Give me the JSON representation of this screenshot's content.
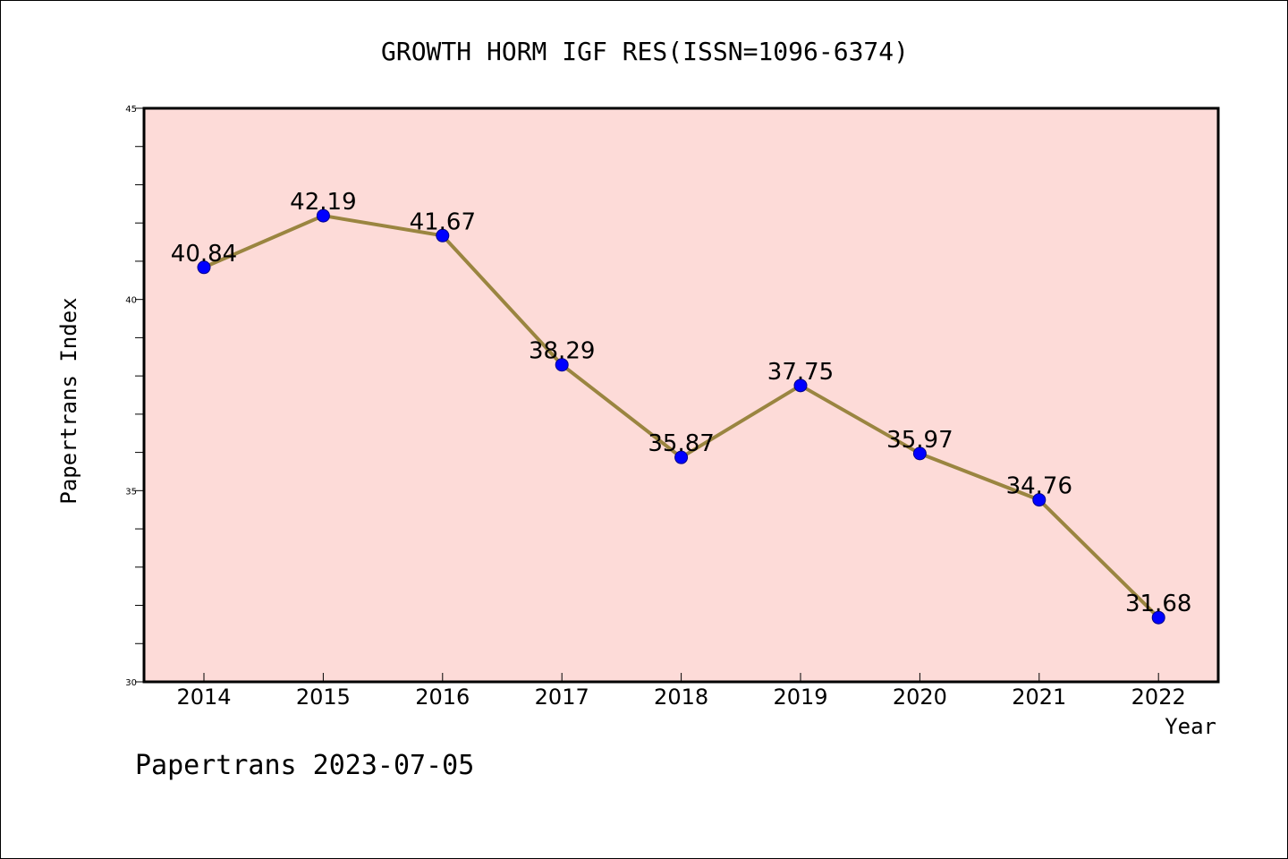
{
  "chart_data": {
    "type": "line",
    "title": "GROWTH HORM IGF RES(ISSN=1096-6374)",
    "xlabel": "Year",
    "ylabel": "Papertrans Index",
    "categories": [
      "2014",
      "2015",
      "2016",
      "2017",
      "2018",
      "2019",
      "2020",
      "2021",
      "2022"
    ],
    "series": [
      {
        "values": [
          40.84,
          42.19,
          41.67,
          38.29,
          35.87,
          37.75,
          35.97,
          34.76,
          31.68
        ],
        "labels": [
          "40.84",
          "42.19",
          "41.67",
          "38.29",
          "35.87",
          "37.75",
          "35.97",
          "34.76",
          "31.68"
        ]
      }
    ],
    "ylim": [
      30,
      45
    ],
    "yticks": [
      "30",
      "35",
      "40",
      "45"
    ],
    "y_minor_step": 1,
    "grid": false,
    "legend": "none",
    "colors": {
      "plot_background": "#fddbd8",
      "line": "#9a8540",
      "marker": "#0000ff",
      "marker_edge": "#00008b",
      "axes": "#000000"
    }
  },
  "footer": "Papertrans 2023-07-05"
}
